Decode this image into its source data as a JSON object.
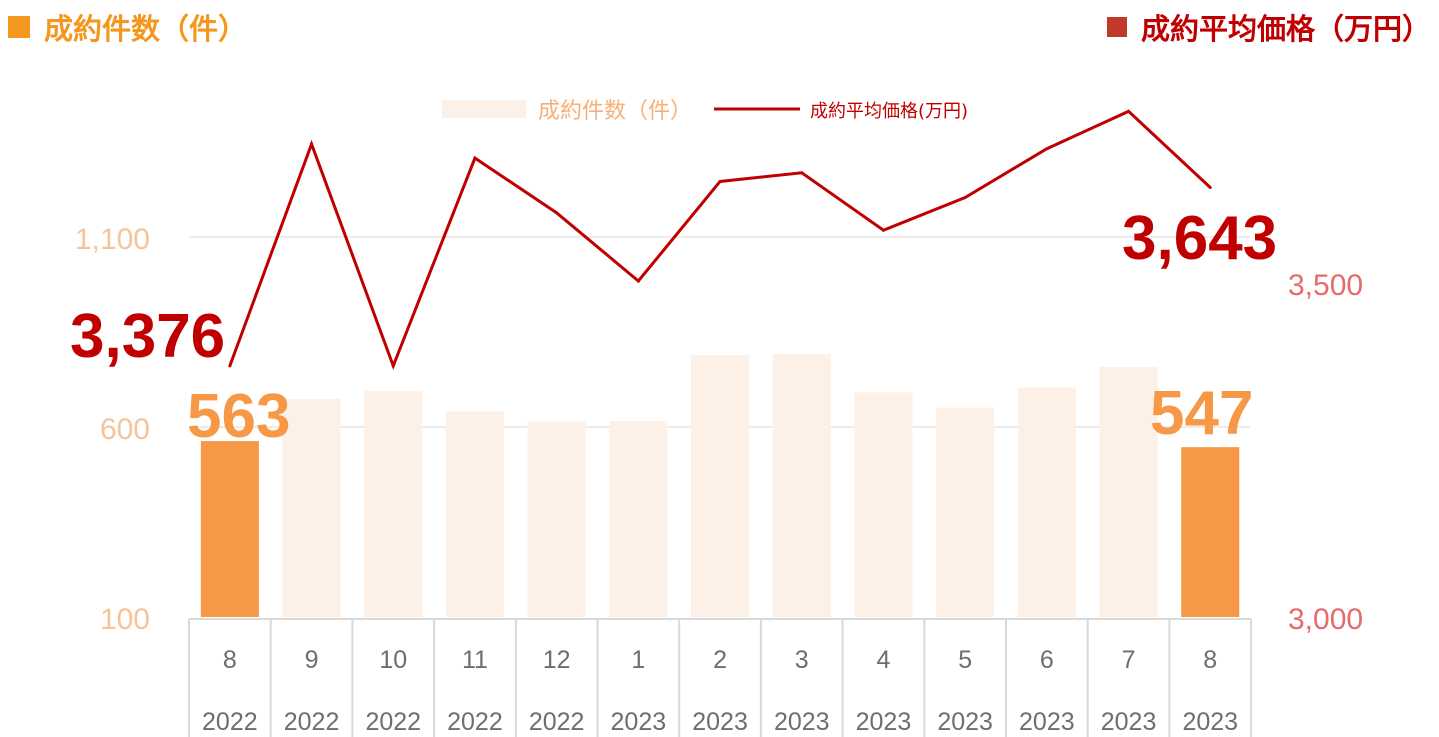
{
  "header": {
    "left_title": "成約件数（件）",
    "right_title": "成約平均価格（万円）"
  },
  "colors": {
    "bar_light": "#fdf0e7",
    "bar_highlight": "#f79846",
    "line": "#c00000",
    "left_axis_text": "#f5c49a",
    "right_axis_text": "#e46c6c",
    "grid": "#d9d9d9"
  },
  "chart_data": {
    "type": "bar+line",
    "legend": [
      {
        "name": "成約件数（件）",
        "kind": "bar"
      },
      {
        "name": "成約平均価格(万円)",
        "kind": "line"
      }
    ],
    "categories": [
      {
        "month": "8",
        "year": "2022"
      },
      {
        "month": "9",
        "year": "2022"
      },
      {
        "month": "10",
        "year": "2022"
      },
      {
        "month": "11",
        "year": "2022"
      },
      {
        "month": "12",
        "year": "2022"
      },
      {
        "month": "1",
        "year": "2023"
      },
      {
        "month": "2",
        "year": "2023"
      },
      {
        "month": "3",
        "year": "2023"
      },
      {
        "month": "4",
        "year": "2023"
      },
      {
        "month": "5",
        "year": "2023"
      },
      {
        "month": "6",
        "year": "2023"
      },
      {
        "month": "7",
        "year": "2023"
      },
      {
        "month": "8",
        "year": "2023"
      }
    ],
    "bar_values": [
      563,
      674,
      695,
      641,
      614,
      616,
      789,
      792,
      691,
      651,
      704,
      758,
      547
    ],
    "line_values": [
      3376,
      3708,
      3376,
      3687,
      3605,
      3503,
      3652,
      3665,
      3579,
      3628,
      3701,
      3757,
      3643
    ],
    "highlight_indices": [
      0,
      12
    ],
    "left_axis": {
      "min": 100,
      "max": 1100,
      "ticks": [
        "100",
        "600",
        "1,100"
      ]
    },
    "right_axis": {
      "min": 3000,
      "max": 3500,
      "ticks": [
        "3,000",
        "3,500"
      ]
    },
    "annotations": {
      "first_bar": "563",
      "last_bar": "547",
      "first_line": "3,376",
      "last_line": "3,643"
    }
  }
}
